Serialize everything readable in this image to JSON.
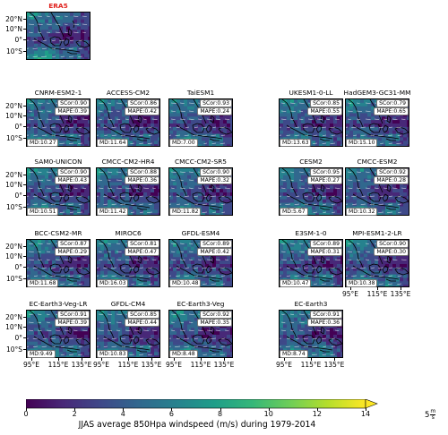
{
  "reference": {
    "name": "ERA5"
  },
  "models": [
    {
      "name": "CNRM-ESM2-1",
      "scor": "SCor:0.90",
      "mape": "MAPE:0.39",
      "md": "MD:10.27"
    },
    {
      "name": "ACCESS-CM2",
      "scor": "SCor:0.86",
      "mape": "MAPE:0.42",
      "md": "MD:11.64"
    },
    {
      "name": "TaiESM1",
      "scor": "SCor:0.93",
      "mape": "MAPE:0.24",
      "md": "MD:7.00"
    },
    {
      "name": "UKESM1-0-LL",
      "scor": "SCor:0.85",
      "mape": "MAPE:0.55",
      "md": "MD:13.63"
    },
    {
      "name": "HadGEM3-GC31-MM",
      "scor": "SCor:0.79",
      "mape": "MAPE:0.65",
      "md": "MD:15.10"
    },
    {
      "name": "SAM0-UNICON",
      "scor": "SCor:0.90",
      "mape": "MAPE:0.43",
      "md": "MD:10.51"
    },
    {
      "name": "CMCC-CM2-HR4",
      "scor": "SCor:0.88",
      "mape": "MAPE:0.36",
      "md": "MD:11.42"
    },
    {
      "name": "CMCC-CM2-SR5",
      "scor": "SCor:0.90",
      "mape": "MAPE:0.32",
      "md": "MD:11.82"
    },
    {
      "name": "CESM2",
      "scor": "SCor:0.95",
      "mape": "MAPE:0.27",
      "md": "MD:5.67"
    },
    {
      "name": "CMCC-ESM2",
      "scor": "SCor:0.92",
      "mape": "MAPE:0.28",
      "md": "MD:10.32"
    },
    {
      "name": "BCC-CSM2-MR",
      "scor": "SCor:0.87",
      "mape": "MAPE:0.29",
      "md": "MD:11.68"
    },
    {
      "name": "MIROC6",
      "scor": "SCor:0.81",
      "mape": "MAPE:0.47",
      "md": "MD:16.03"
    },
    {
      "name": "GFDL-ESM4",
      "scor": "SCor:0.89",
      "mape": "MAPE:0.42",
      "md": "MD:10.48"
    },
    {
      "name": "E3SM-1-0",
      "scor": "SCor:0.89",
      "mape": "MAPE:0.31",
      "md": "MD:10.47"
    },
    {
      "name": "MPI-ESM1-2-LR",
      "scor": "SCor:0.90",
      "mape": "MAPE:0.30",
      "md": "MD:10.38"
    },
    {
      "name": "EC-Earth3-Veg-LR",
      "scor": "SCor:0.91",
      "mape": "MAPE:0.39",
      "md": "MD:9.49"
    },
    {
      "name": "GFDL-CM4",
      "scor": "SCor:0.85",
      "mape": "MAPE:0.44",
      "md": "MD:10.83"
    },
    {
      "name": "EC-Earth3-Veg",
      "scor": "SCor:0.92",
      "mape": "MAPE:0.35",
      "md": "MD:8.48"
    },
    {
      "name": "EC-Earth3",
      "scor": "SCor:0.91",
      "mape": "MAPE:0.36",
      "md": "MD:8.74"
    }
  ],
  "axes": {
    "lat_labels": [
      "20°N",
      "10°N",
      "0°",
      "10°S"
    ],
    "lon_labels": [
      "95°E",
      "115°E",
      "135°E"
    ]
  },
  "colorbar": {
    "title": "JJAS average 850Hpa windspeed (m/s) during 1979-2014",
    "ticks": [
      "0",
      "2",
      "4",
      "6",
      "8",
      "10",
      "12",
      "14"
    ],
    "range": [
      0,
      14
    ],
    "colors": [
      "#440154",
      "#482878",
      "#3e4989",
      "#31688e",
      "#26828e",
      "#1f9e89",
      "#35b779",
      "#6ece58",
      "#b5de2b",
      "#fde725"
    ],
    "extend": "max"
  },
  "quiver_key": {
    "label": "5",
    "unit_num": "m",
    "unit_den": "s"
  },
  "chart_data": {
    "type": "heatmap",
    "title": "JJAS average 850Hpa windspeed (m/s) during 1979-2014",
    "xlabel": "",
    "ylabel": "",
    "colorbar_range": [
      0,
      14
    ],
    "lon_ticks": [
      "95°E",
      "115°E",
      "135°E"
    ],
    "lat_ticks": [
      "20°N",
      "10°N",
      "0°",
      "10°S"
    ],
    "reference": "ERA5",
    "models": [
      "CNRM-ESM2-1",
      "ACCESS-CM2",
      "TaiESM1",
      "UKESM1-0-LL",
      "HadGEM3-GC31-MM",
      "SAM0-UNICON",
      "CMCC-CM2-HR4",
      "CMCC-CM2-SR5",
      "CESM2",
      "CMCC-ESM2",
      "BCC-CSM2-MR",
      "MIROC6",
      "GFDL-ESM4",
      "E3SM-1-0",
      "MPI-ESM1-2-LR",
      "EC-Earth3-Veg-LR",
      "GFDL-CM4",
      "EC-Earth3-Veg",
      "EC-Earth3"
    ],
    "SCor": [
      0.9,
      0.86,
      0.93,
      0.85,
      0.79,
      0.9,
      0.88,
      0.9,
      0.95,
      0.92,
      0.87,
      0.81,
      0.89,
      0.89,
      0.9,
      0.91,
      0.85,
      0.92,
      0.91
    ],
    "MAPE": [
      0.39,
      0.42,
      0.24,
      0.55,
      0.65,
      0.43,
      0.36,
      0.32,
      0.27,
      0.28,
      0.29,
      0.47,
      0.42,
      0.31,
      0.3,
      0.39,
      0.44,
      0.35,
      0.36
    ],
    "MD": [
      10.27,
      11.64,
      7.0,
      13.63,
      15.1,
      10.51,
      11.42,
      11.82,
      5.67,
      10.32,
      11.68,
      16.03,
      10.48,
      10.47,
      10.38,
      9.49,
      10.83,
      8.48,
      8.74
    ]
  }
}
